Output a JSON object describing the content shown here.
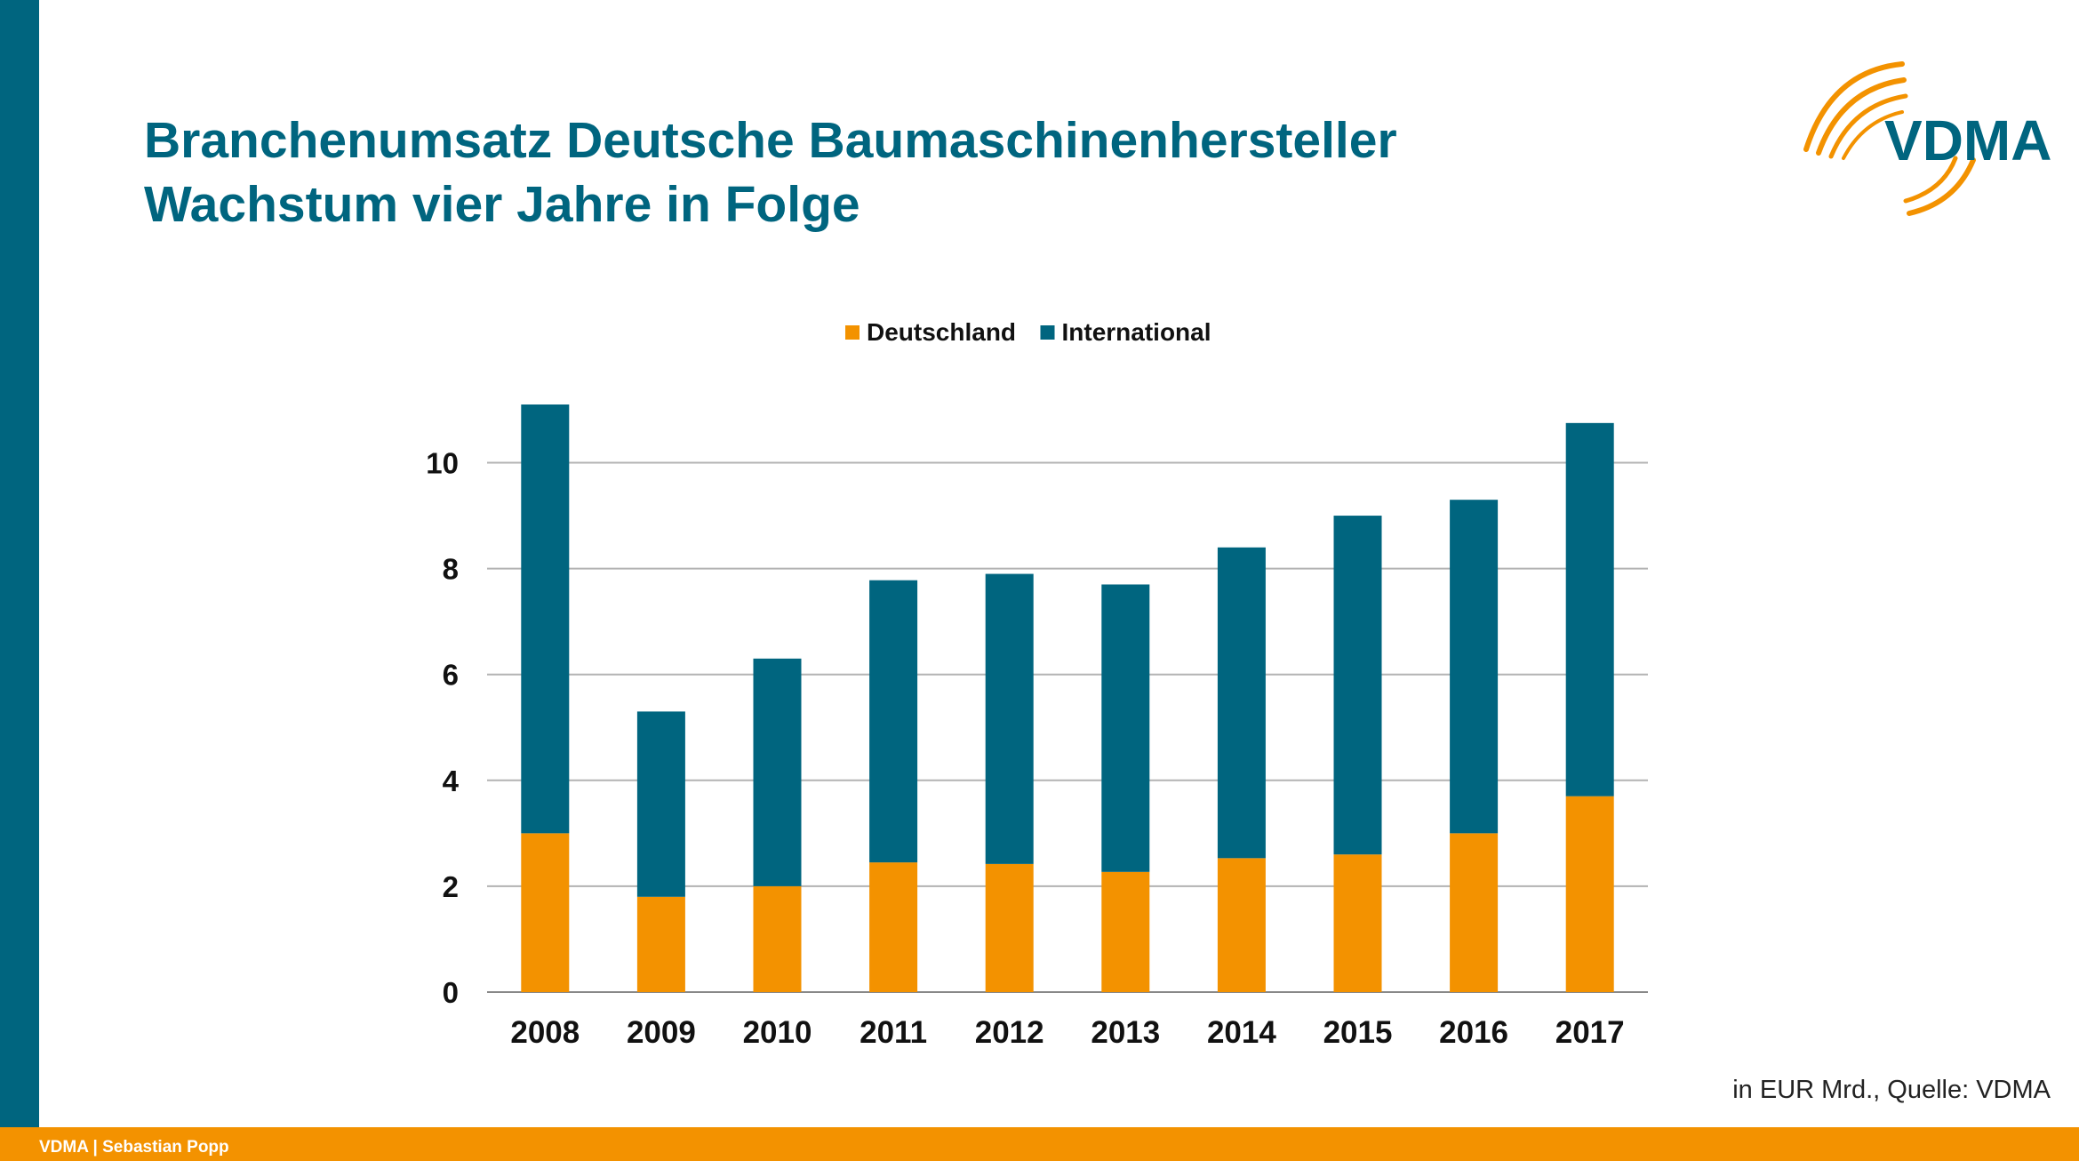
{
  "slide": {
    "title_line1": "Branchenumsatz Deutsche Baumaschinenhersteller",
    "title_line2": "Wachstum vier Jahre in Folge",
    "logo_text": "VDMA",
    "source_note": "in EUR Mrd., Quelle: VDMA",
    "footer": "VDMA | Sebastian Popp"
  },
  "colors": {
    "primary": "#00657f",
    "accent": "#f39200",
    "gridline": "#b3b3b3"
  },
  "chart_data": {
    "type": "bar",
    "stacked": true,
    "categories": [
      "2008",
      "2009",
      "2010",
      "2011",
      "2012",
      "2013",
      "2014",
      "2015",
      "2016",
      "2017"
    ],
    "series": [
      {
        "name": "Deutschland",
        "color": "#f39200",
        "values": [
          3.0,
          1.8,
          2.0,
          2.45,
          2.42,
          2.27,
          2.53,
          2.6,
          3.0,
          3.7
        ]
      },
      {
        "name": "International",
        "color": "#00657f",
        "values": [
          8.1,
          3.5,
          4.3,
          5.33,
          5.48,
          5.43,
          5.87,
          6.4,
          6.3,
          7.05
        ]
      }
    ],
    "yticks": [
      0,
      2,
      4,
      6,
      8,
      10
    ],
    "ylim": [
      0,
      11.1
    ],
    "grid": true,
    "legend": "top-center"
  }
}
